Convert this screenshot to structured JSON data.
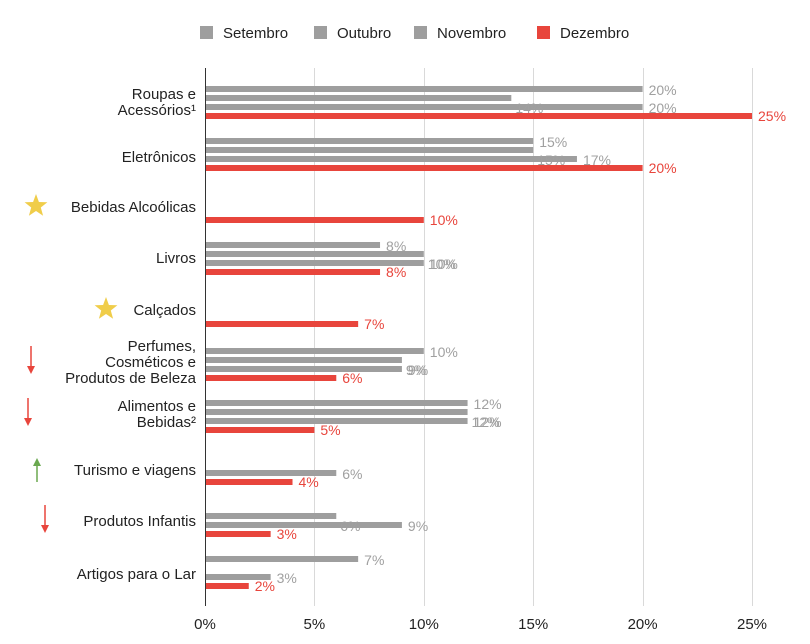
{
  "chart_data": {
    "type": "bar",
    "orientation": "horizontal",
    "title": "",
    "xlabel": "",
    "ylabel": "",
    "xlim": [
      0,
      25
    ],
    "x_unit": "%",
    "x_ticks": [
      "0%",
      "5%",
      "10%",
      "15%",
      "20%",
      "25%"
    ],
    "legend": {
      "placement": "top-center",
      "entries": [
        {
          "name": "Setembro",
          "color": "#9e9e9e"
        },
        {
          "name": "Outubro",
          "color": "#9e9e9e"
        },
        {
          "name": "Novembro",
          "color": "#9e9e9e"
        },
        {
          "name": "Dezembro",
          "color": "#e8453c"
        }
      ]
    },
    "colors": {
      "gray": "#9e9e9e",
      "red": "#e8453c",
      "gray_label": "#a0a0a0",
      "red_label": "#e8453c",
      "star": "#f0cd4a",
      "arrow_down": "#e8453c",
      "arrow_up": "#6aa84f"
    },
    "categories": [
      {
        "lines": [
          "Roupas e",
          "Acessórios¹"
        ],
        "marker": "none",
        "bars": [
          {
            "series": "Setembro",
            "value": 20,
            "label": "20%"
          },
          {
            "series": "Outubro",
            "value": 14,
            "label": "14%"
          },
          {
            "series": "Novembro",
            "value": 20,
            "label": "20%"
          },
          {
            "series": "Dezembro",
            "value": 25,
            "label": "25%"
          }
        ]
      },
      {
        "lines": [
          "Eletrônicos"
        ],
        "marker": "none",
        "bars": [
          {
            "series": "Setembro",
            "value": 15,
            "label": "15%"
          },
          {
            "series": "Outubro",
            "value": 15,
            "label": "15%"
          },
          {
            "series": "Novembro",
            "value": 17,
            "label": "17%"
          },
          {
            "series": "Dezembro",
            "value": 20,
            "label": "20%"
          }
        ]
      },
      {
        "lines": [
          "Bebidas Alcoólicas"
        ],
        "marker": "star",
        "bars": [
          {
            "series": "Dezembro",
            "value": 10,
            "label": "10%"
          }
        ]
      },
      {
        "lines": [
          "Livros"
        ],
        "marker": "none",
        "bars": [
          {
            "series": "Setembro",
            "value": 8,
            "label": "8%"
          },
          {
            "series": "Outubro",
            "value": 10,
            "label": "10%"
          },
          {
            "series": "Novembro",
            "value": 10,
            "label": "10%"
          },
          {
            "series": "Dezembro",
            "value": 8,
            "label": "8%"
          }
        ]
      },
      {
        "lines": [
          "Calçados"
        ],
        "marker": "star",
        "bars": [
          {
            "series": "Dezembro",
            "value": 7,
            "label": "7%"
          }
        ]
      },
      {
        "lines": [
          "Perfumes,",
          "Cosméticos e",
          "Produtos de Beleza"
        ],
        "marker": "arrow-down",
        "bars": [
          {
            "series": "Setembro",
            "value": 10,
            "label": "10%"
          },
          {
            "series": "Outubro",
            "value": 9,
            "label": "9%"
          },
          {
            "series": "Novembro",
            "value": 9,
            "label": "9%"
          },
          {
            "series": "Dezembro",
            "value": 6,
            "label": "6%"
          }
        ]
      },
      {
        "lines": [
          "Alimentos e",
          "Bebidas²"
        ],
        "marker": "arrow-down",
        "bars": [
          {
            "series": "Setembro",
            "value": 12,
            "label": "12%"
          },
          {
            "series": "Outubro",
            "value": 12,
            "label": "12%"
          },
          {
            "series": "Novembro",
            "value": 12,
            "label": "12%"
          },
          {
            "series": "Dezembro",
            "value": 5,
            "label": "5%"
          }
        ]
      },
      {
        "lines": [
          "Turismo e viagens"
        ],
        "marker": "arrow-up",
        "bars": [
          {
            "series": "Novembro",
            "value": 6,
            "label": "6%"
          },
          {
            "series": "Dezembro",
            "value": 4,
            "label": "4%"
          }
        ]
      },
      {
        "lines": [
          "Produtos Infantis"
        ],
        "marker": "arrow-down",
        "bars": [
          {
            "series": "Outubro",
            "value": 6,
            "label": "6%"
          },
          {
            "series": "Novembro",
            "value": 9,
            "label": "9%"
          },
          {
            "series": "Dezembro",
            "value": 3,
            "label": "3%"
          }
        ]
      },
      {
        "lines": [
          "Artigos para o Lar"
        ],
        "marker": "none",
        "bars": [
          {
            "series": "Setembro",
            "value": 7,
            "label": "7%"
          },
          {
            "series": "Novembro",
            "value": 3,
            "label": "3%"
          },
          {
            "series": "Dezembro",
            "value": 2,
            "label": "2%"
          }
        ]
      }
    ]
  }
}
